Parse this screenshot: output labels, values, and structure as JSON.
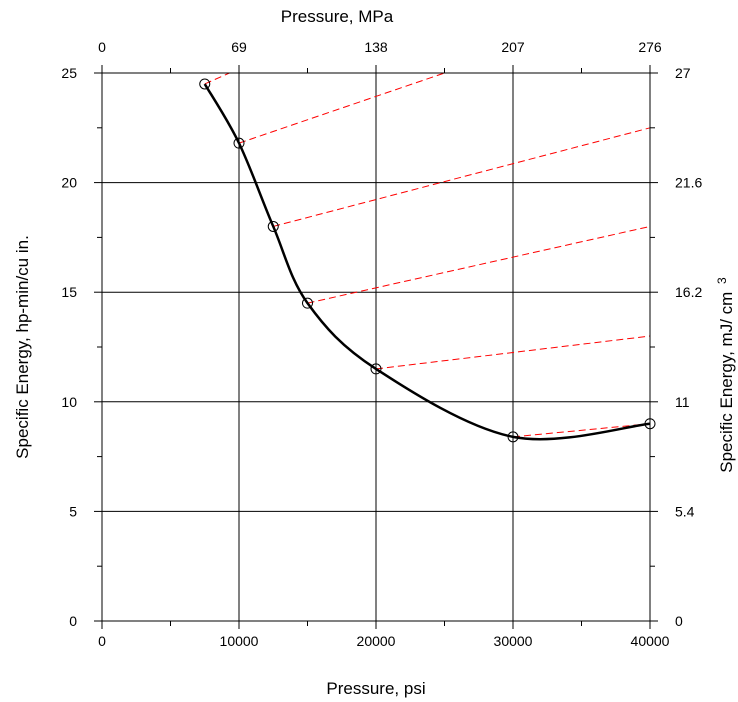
{
  "chart_data": {
    "type": "line",
    "xlabel": "Pressure, psi",
    "ylabel": "Specific Energy, hp-min/cu in.",
    "x2label": "Pressure, MPa",
    "y2label_main": "Specific Energy, mJ/ cm",
    "y2label_sup": "3",
    "xlim": [
      0,
      40000
    ],
    "ylim": [
      0,
      25
    ],
    "x_ticks": [
      0,
      10000,
      20000,
      30000,
      40000
    ],
    "x_tick_labels": [
      "0",
      "10000",
      "20000",
      "30000",
      "40000"
    ],
    "x_minor_ticks": [
      5000,
      15000,
      25000,
      35000
    ],
    "y_ticks": [
      0,
      5,
      10,
      15,
      20,
      25
    ],
    "y_tick_labels": [
      "0",
      "5",
      "10",
      "15",
      "20",
      "25"
    ],
    "y_minor_ticks": [
      2.5,
      7.5,
      12.5,
      17.5,
      22.5
    ],
    "x2_ticks": [
      0,
      10000,
      20000,
      30000,
      40000
    ],
    "x2_tick_labels": [
      "0",
      "69",
      "138",
      "207",
      "276"
    ],
    "y2_ticks": [
      0,
      5,
      10,
      15,
      20,
      25
    ],
    "y2_tick_labels": [
      "0",
      "5.4",
      "11",
      "16.2",
      "21.6",
      "27"
    ],
    "grid": true,
    "series": [
      {
        "style": "solid-black-with-circle-markers",
        "color": "#000000",
        "x": [
          7500,
          10000,
          12500,
          15000,
          20000,
          30000,
          40000
        ],
        "y": [
          24.5,
          21.8,
          18.0,
          14.5,
          11.5,
          8.4,
          9.0
        ]
      }
    ],
    "tangent_lines": {
      "color": "#ff0000",
      "style": "dashed",
      "segments": [
        {
          "from": [
            7500,
            24.5
          ],
          "to": [
            9300,
            25.0
          ]
        },
        {
          "from": [
            10000,
            21.8
          ],
          "to": [
            25000,
            25.0
          ]
        },
        {
          "from": [
            12500,
            18.0
          ],
          "to": [
            40000,
            22.5
          ]
        },
        {
          "from": [
            15000,
            14.5
          ],
          "to": [
            40000,
            18.0
          ]
        },
        {
          "from": [
            20000,
            11.5
          ],
          "to": [
            40000,
            13.0
          ]
        },
        {
          "from": [
            30000,
            8.4
          ],
          "to": [
            40000,
            9.0
          ]
        }
      ]
    }
  }
}
